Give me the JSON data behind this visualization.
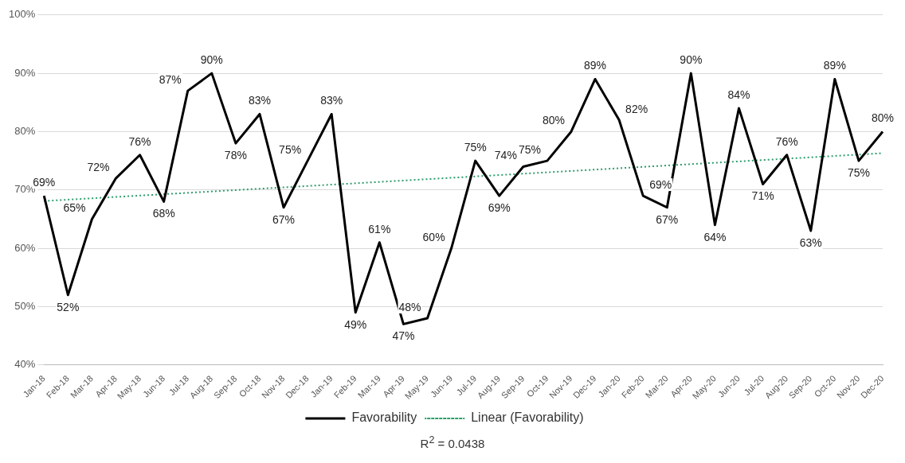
{
  "chart_data": {
    "type": "line",
    "categories": [
      "Jan-18",
      "Feb-18",
      "Mar-18",
      "Apr-18",
      "May-18",
      "Jun-18",
      "Jul-18",
      "Aug-18",
      "Sep-18",
      "Oct-18",
      "Nov-18",
      "Dec-18",
      "Jan-19",
      "Feb-19",
      "Mar-19",
      "Apr-19",
      "May-19",
      "Jun-19",
      "Jul-19",
      "Aug-19",
      "Sep-19",
      "Oct-19",
      "Nov-19",
      "Dec-19",
      "Jan-20",
      "Feb-20",
      "Mar-20",
      "Apr-20",
      "May-20",
      "Jun-20",
      "Jul-20",
      "Aug-20",
      "Sep-20",
      "Oct-20",
      "Nov-20",
      "Dec-20"
    ],
    "series": [
      {
        "name": "Favorability",
        "color": "#000000",
        "line_style": "solid",
        "values": [
          69,
          52,
          65,
          72,
          76,
          68,
          87,
          90,
          78,
          83,
          67,
          75,
          83,
          49,
          61,
          47,
          48,
          60,
          75,
          69,
          74,
          75,
          80,
          89,
          82,
          69,
          67,
          90,
          64,
          84,
          71,
          76,
          63,
          89,
          75,
          80
        ],
        "value_labels": [
          "69%",
          "52%",
          "65%",
          "72%",
          "76%",
          "68%",
          "87%",
          "90%",
          "78%",
          "83%",
          "67%",
          "75%",
          "83%",
          "49%",
          "61%",
          "47%",
          "48%",
          "60%",
          "75%",
          "69%",
          "74%",
          "75%",
          "80%",
          "89%",
          "82%",
          "69%",
          "67%",
          "90%",
          "64%",
          "84%",
          "71%",
          "76%",
          "63%",
          "89%",
          "75%",
          "80%"
        ]
      },
      {
        "name": "Linear (Favorability)",
        "color": "#2e9e6b",
        "line_style": "dotted",
        "values": [
          68.1,
          null,
          null,
          null,
          null,
          null,
          null,
          null,
          null,
          null,
          null,
          null,
          null,
          null,
          null,
          null,
          null,
          null,
          null,
          null,
          null,
          null,
          null,
          null,
          null,
          null,
          null,
          null,
          null,
          null,
          null,
          null,
          null,
          null,
          null,
          76.3
        ]
      }
    ],
    "ylim": [
      40,
      100
    ],
    "yticks": [
      {
        "value": 40,
        "label": "40%"
      },
      {
        "value": 50,
        "label": "50%"
      },
      {
        "value": 60,
        "label": "60%"
      },
      {
        "value": 70,
        "label": "70%"
      },
      {
        "value": 80,
        "label": "80%"
      },
      {
        "value": 90,
        "label": "90%"
      },
      {
        "value": 100,
        "label": "100%"
      }
    ],
    "grid": "y",
    "legend": "bottom",
    "marker": "none",
    "annotations": [
      "R$^{2}$ = 0.0438"
    ]
  }
}
